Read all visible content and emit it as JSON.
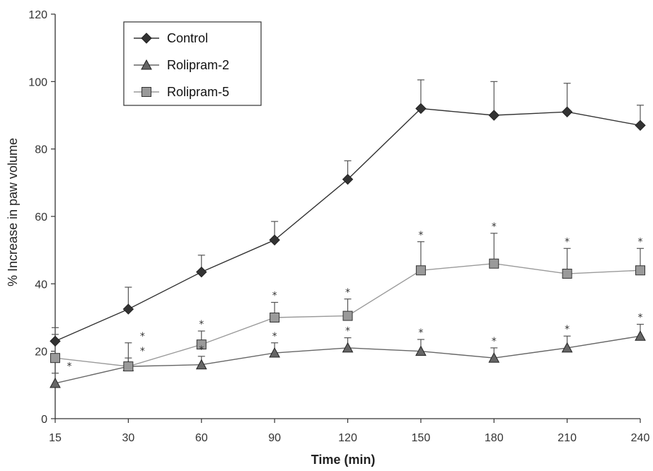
{
  "chart_data": {
    "type": "line",
    "xlabel": "Time (min)",
    "ylabel": "% Increase in paw volume",
    "x": [
      15,
      30,
      60,
      90,
      120,
      150,
      180,
      210,
      240
    ],
    "x_tick_labels": [
      "15",
      "30",
      "60",
      "90",
      "120",
      "150",
      "180",
      "210",
      "240"
    ],
    "y_ticks": [
      0,
      20,
      40,
      60,
      80,
      100,
      120
    ],
    "ylim": [
      0,
      120
    ],
    "grid": false,
    "legend_position": "top-left",
    "series": [
      {
        "name": "Control",
        "marker": "diamond",
        "color": "#333333",
        "values": [
          23,
          32.5,
          43.5,
          53,
          71,
          92,
          90,
          91,
          87
        ],
        "errors": [
          4,
          6.5,
          5,
          5.5,
          5.5,
          8.5,
          10,
          8.5,
          6
        ]
      },
      {
        "name": "Rolipram-2",
        "marker": "triangle",
        "color": "#666666",
        "values": [
          10.5,
          15.5,
          16,
          19.5,
          21,
          20,
          18,
          21,
          24.5
        ],
        "errors": [
          3,
          2.5,
          2.5,
          3,
          3,
          3.5,
          3,
          3.5,
          3.5
        ]
      },
      {
        "name": "Rolipram-5",
        "marker": "square",
        "color": "#9a9a9a",
        "values": [
          18,
          15.5,
          22,
          30,
          30.5,
          44,
          46,
          43,
          44
        ],
        "errors": [
          7,
          7,
          4,
          4.5,
          5,
          8.5,
          9,
          7.5,
          6.5
        ]
      }
    ],
    "annotations": [
      {
        "text": "*",
        "x": 15,
        "series": "Rolipram-2"
      },
      {
        "text": "*",
        "x": 30,
        "series": "Rolipram-2"
      },
      {
        "text": "*",
        "x": 30,
        "series": "Rolipram-5"
      },
      {
        "text": "*",
        "x": 60,
        "series": "Rolipram-2"
      },
      {
        "text": "*",
        "x": 60,
        "series": "Rolipram-5"
      },
      {
        "text": "*",
        "x": 90,
        "series": "Rolipram-2"
      },
      {
        "text": "*",
        "x": 90,
        "series": "Rolipram-5"
      },
      {
        "text": "*",
        "x": 120,
        "series": "Rolipram-2"
      },
      {
        "text": "*",
        "x": 120,
        "series": "Rolipram-5"
      },
      {
        "text": "*",
        "x": 150,
        "series": "Rolipram-2"
      },
      {
        "text": "*",
        "x": 150,
        "series": "Rolipram-5"
      },
      {
        "text": "*",
        "x": 180,
        "series": "Rolipram-2"
      },
      {
        "text": "*",
        "x": 180,
        "series": "Rolipram-5"
      },
      {
        "text": "*",
        "x": 210,
        "series": "Rolipram-2"
      },
      {
        "text": "*",
        "x": 210,
        "series": "Rolipram-5"
      },
      {
        "text": "*",
        "x": 240,
        "series": "Rolipram-2"
      },
      {
        "text": "*",
        "x": 240,
        "series": "Rolipram-5"
      }
    ]
  }
}
